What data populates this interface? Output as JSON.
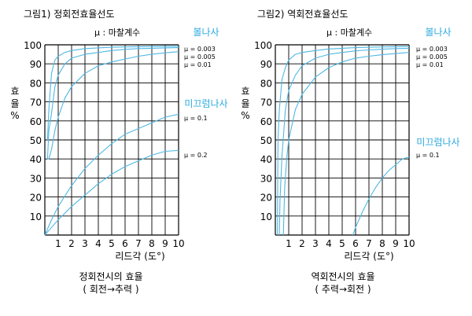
{
  "colors": {
    "curve": "#4fb8e3",
    "accent": "#29a9df",
    "grid": "#000000"
  },
  "chart_data": [
    {
      "type": "line",
      "figure_title": "그림1) 정회전효율선도",
      "legend_title": "μ : 마찰계수",
      "xlabel": "리드각 (도°)",
      "ylabel": [
        "효",
        "율",
        "%"
      ],
      "xlim": [
        0,
        10
      ],
      "ylim": [
        0,
        100
      ],
      "x_ticks": [
        "1",
        "2",
        "3",
        "4",
        "5",
        "6",
        "7",
        "8",
        "9",
        "10"
      ],
      "y_ticks": [
        "10",
        "20",
        "30",
        "40",
        "50",
        "60",
        "70",
        "80",
        "90",
        "100"
      ],
      "group_labels": {
        "ball": "볼나사",
        "slide": "미끄럼나사"
      },
      "caption": [
        "정회전시의 효율",
        "( 회전→추력 )"
      ],
      "series": [
        {
          "name": "μ = 0.003",
          "group": "ball",
          "x": [
            0.2,
            0.3,
            0.5,
            0.75,
            1,
            1.5,
            2,
            3,
            4,
            5,
            6,
            7,
            8,
            9,
            10
          ],
          "values": [
            50,
            66,
            85,
            92,
            94,
            96,
            97,
            98,
            98.4,
            98.7,
            98.9,
            99,
            99.1,
            99.2,
            99.2
          ]
        },
        {
          "name": "μ = 0.005",
          "group": "ball",
          "x": [
            0.2,
            0.3,
            0.5,
            0.75,
            1,
            1.5,
            2,
            3,
            4,
            5,
            6,
            7,
            8,
            9,
            10
          ],
          "values": [
            40,
            55,
            64,
            78,
            84,
            90,
            93,
            95,
            96,
            97,
            97.6,
            98,
            98.2,
            98.4,
            98.5
          ]
        },
        {
          "name": "μ = 0.01",
          "group": "ball",
          "x": [
            0.2,
            0.3,
            0.5,
            0.75,
            1,
            1.5,
            2,
            3,
            4,
            5,
            6,
            7,
            8,
            9,
            10
          ],
          "values": [
            40,
            40,
            45,
            55,
            62,
            72,
            78,
            85,
            89,
            91,
            92.5,
            94,
            95,
            95.8,
            96.4
          ]
        },
        {
          "name": "μ = 0.1",
          "group": "slide",
          "x": [
            0,
            0.5,
            1,
            2,
            3,
            4,
            5,
            6,
            7,
            8,
            9,
            10
          ],
          "values": [
            0,
            8,
            15,
            26,
            35,
            42,
            48,
            53,
            56,
            59,
            62,
            63.5
          ]
        },
        {
          "name": "μ = 0.2",
          "group": "slide",
          "x": [
            0,
            0.5,
            1,
            2,
            3,
            4,
            5,
            6,
            7,
            8,
            9,
            10
          ],
          "values": [
            0,
            4,
            8,
            15,
            21,
            27,
            32,
            36,
            39,
            42,
            44,
            44.5
          ]
        }
      ]
    },
    {
      "type": "line",
      "figure_title": "그림2) 역회전효율선도",
      "legend_title": "μ : 마찰계수",
      "xlabel": "리드각 (도°)",
      "ylabel": [
        "효",
        "율",
        "%"
      ],
      "xlim": [
        0,
        10
      ],
      "ylim": [
        0,
        100
      ],
      "x_ticks": [
        "1",
        "2",
        "3",
        "4",
        "5",
        "6",
        "7",
        "8",
        "9",
        "10"
      ],
      "y_ticks": [
        "10",
        "20",
        "30",
        "40",
        "50",
        "60",
        "70",
        "80",
        "90",
        "100"
      ],
      "group_labels": {
        "ball": "볼나사",
        "slide": "미끄럼나사"
      },
      "caption": [
        "역회전시의 효율",
        "( 추력→회전 )"
      ],
      "series": [
        {
          "name": "μ = 0.003",
          "group": "ball",
          "x": [
            0.15,
            0.2,
            0.3,
            0.5,
            0.75,
            1,
            1.5,
            2,
            3,
            4,
            5,
            6,
            7,
            8,
            9,
            10
          ],
          "values": [
            0,
            50,
            66,
            82,
            88,
            92,
            95,
            96,
            97,
            97.8,
            98.2,
            98.5,
            98.7,
            98.9,
            99,
            99.1
          ]
        },
        {
          "name": "μ = 0.005",
          "group": "ball",
          "x": [
            0.3,
            0.35,
            0.5,
            0.75,
            1,
            1.5,
            2,
            3,
            4,
            5,
            6,
            7,
            8,
            9,
            10
          ],
          "values": [
            0,
            18,
            42,
            66,
            76,
            84,
            89,
            93,
            95,
            96,
            96.8,
            97.3,
            97.7,
            98,
            98.2
          ]
        },
        {
          "name": "μ = 0.01",
          "group": "ball",
          "x": [
            0.6,
            0.7,
            0.85,
            1,
            1.5,
            2,
            3,
            4,
            5,
            6,
            7,
            8,
            9,
            10
          ],
          "values": [
            0,
            25,
            40,
            50,
            66,
            74,
            83,
            88,
            91,
            93,
            94,
            94.8,
            95.4,
            96
          ]
        },
        {
          "name": "μ = 0.1",
          "group": "slide",
          "x": [
            5.8,
            6,
            6.5,
            7,
            7.5,
            8,
            8.5,
            9,
            9.5,
            10
          ],
          "values": [
            0,
            4,
            12,
            19,
            25,
            30,
            34,
            37,
            40,
            41
          ]
        }
      ]
    }
  ]
}
